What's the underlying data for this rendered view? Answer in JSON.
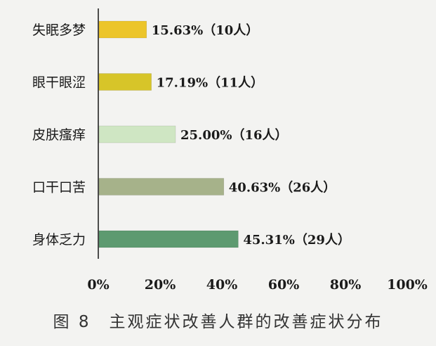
{
  "caption": "图 8　主观症状改善人群的改善症状分布",
  "chart_data": {
    "type": "bar",
    "orientation": "horizontal",
    "categories": [
      "失眠多梦",
      "眼干眼涩",
      "皮肤瘙痒",
      "口干口苦",
      "身体乏力"
    ],
    "values": [
      15.63,
      17.19,
      25.0,
      40.63,
      45.31
    ],
    "data_labels": [
      "15.63%（10人）",
      "17.19%（11人）",
      "25.00%（16人）",
      "40.63%（26人）",
      "45.31%（29人）"
    ],
    "colors": [
      "#ecc52a",
      "#d7c529",
      "#cfe6c3",
      "#a6b28a",
      "#5d9a70"
    ],
    "xticks": [
      "0%",
      "20%",
      "40%",
      "60%",
      "80%",
      "100%"
    ],
    "xlim": [
      0,
      100
    ],
    "title": "",
    "xlabel": "",
    "ylabel": "",
    "grid": false,
    "legend": "none"
  }
}
